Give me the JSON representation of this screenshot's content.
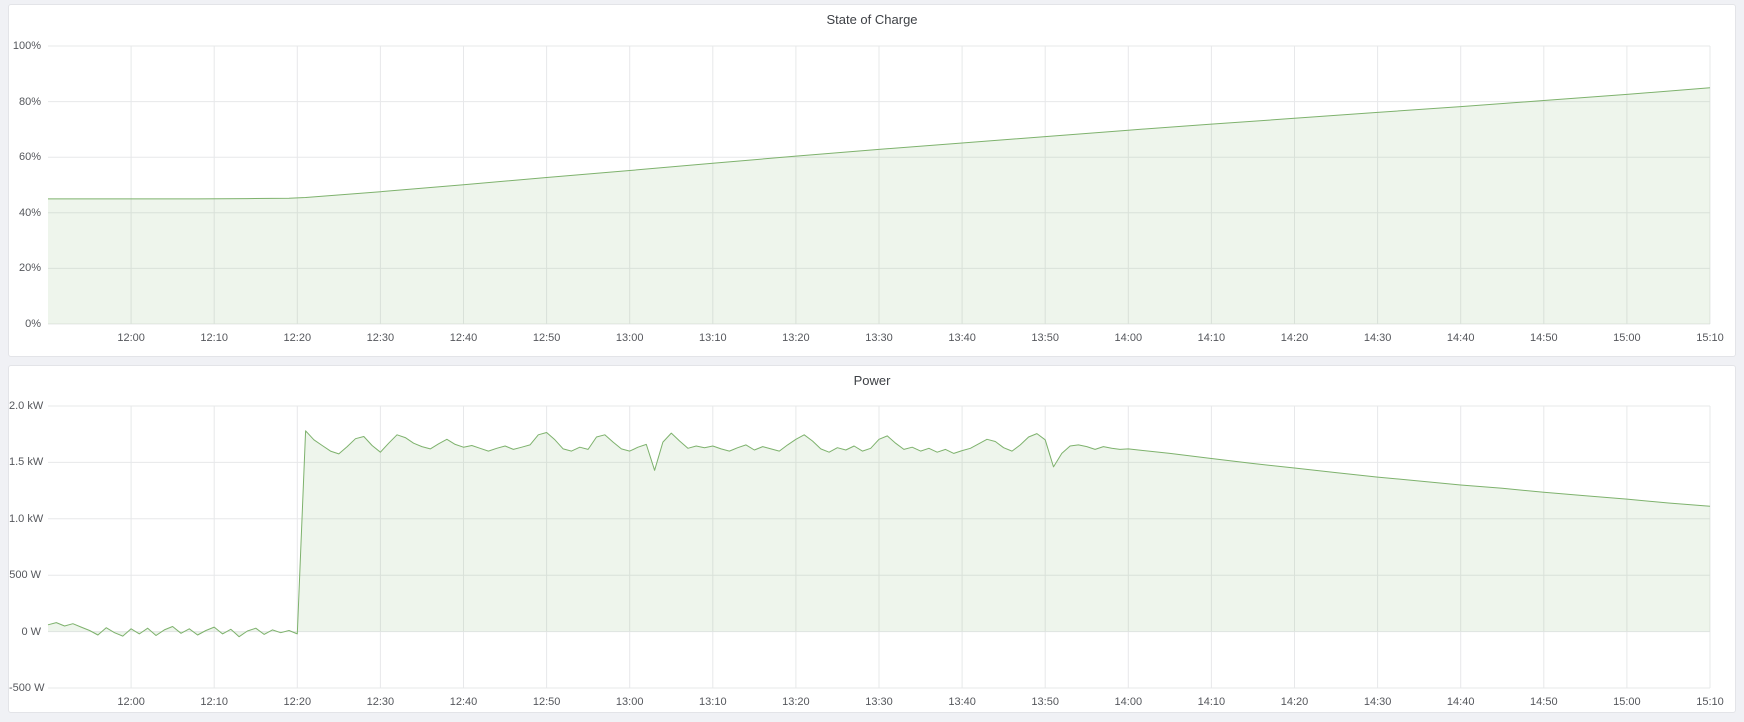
{
  "colors": {
    "series_green": "#7eb26d",
    "series_fill": "rgba(126,178,109,0.13)",
    "grid_line": "#e7e8ea",
    "axis_text": "#55575c",
    "panel_title_text": "#3e4146",
    "panel_background": "#ffffff",
    "page_background": "#f0f1f5"
  },
  "chart_data": [
    {
      "type": "area",
      "title": "State of Charge",
      "xlabel": "",
      "ylabel": "",
      "legend": "off",
      "grid": "on",
      "x_range": [
        0,
        200
      ],
      "y_range": [
        0,
        100
      ],
      "x_unit": "minutes since 11:50",
      "y_unit": "percent",
      "x_ticks": [
        {
          "value": 10,
          "label": "12:00"
        },
        {
          "value": 20,
          "label": "12:10"
        },
        {
          "value": 30,
          "label": "12:20"
        },
        {
          "value": 40,
          "label": "12:30"
        },
        {
          "value": 50,
          "label": "12:40"
        },
        {
          "value": 60,
          "label": "12:50"
        },
        {
          "value": 70,
          "label": "13:00"
        },
        {
          "value": 80,
          "label": "13:10"
        },
        {
          "value": 90,
          "label": "13:20"
        },
        {
          "value": 100,
          "label": "13:30"
        },
        {
          "value": 110,
          "label": "13:40"
        },
        {
          "value": 120,
          "label": "13:50"
        },
        {
          "value": 130,
          "label": "14:00"
        },
        {
          "value": 140,
          "label": "14:10"
        },
        {
          "value": 150,
          "label": "14:20"
        },
        {
          "value": 160,
          "label": "14:30"
        },
        {
          "value": 170,
          "label": "14:40"
        },
        {
          "value": 180,
          "label": "14:50"
        },
        {
          "value": 190,
          "label": "15:00"
        },
        {
          "value": 200,
          "label": "15:10"
        }
      ],
      "y_ticks": [
        {
          "value": 0,
          "label": "0%"
        },
        {
          "value": 20,
          "label": "20%"
        },
        {
          "value": 40,
          "label": "40%"
        },
        {
          "value": 60,
          "label": "60%"
        },
        {
          "value": 80,
          "label": "80%"
        },
        {
          "value": 100,
          "label": "100%"
        }
      ],
      "points": [
        [
          0,
          45
        ],
        [
          6,
          45
        ],
        [
          12,
          45
        ],
        [
          18,
          45
        ],
        [
          24,
          45.1
        ],
        [
          29,
          45.2
        ],
        [
          31,
          45.5
        ],
        [
          40,
          47.6
        ],
        [
          50,
          50.1
        ],
        [
          60,
          52.7
        ],
        [
          70,
          55.2
        ],
        [
          80,
          57.8
        ],
        [
          90,
          60.4
        ],
        [
          100,
          62.8
        ],
        [
          110,
          65.1
        ],
        [
          120,
          67.4
        ],
        [
          130,
          69.7
        ],
        [
          140,
          71.9
        ],
        [
          150,
          74
        ],
        [
          160,
          76.1
        ],
        [
          170,
          78.2
        ],
        [
          180,
          80.4
        ],
        [
          190,
          82.6
        ],
        [
          200,
          85
        ]
      ]
    },
    {
      "type": "area",
      "title": "Power",
      "xlabel": "",
      "ylabel": "",
      "legend": "off",
      "grid": "on",
      "x_range": [
        0,
        200
      ],
      "y_range": [
        -500,
        2000
      ],
      "x_unit": "minutes since 11:50",
      "y_unit": "watts",
      "x_ticks": [
        {
          "value": 10,
          "label": "12:00"
        },
        {
          "value": 20,
          "label": "12:10"
        },
        {
          "value": 30,
          "label": "12:20"
        },
        {
          "value": 40,
          "label": "12:30"
        },
        {
          "value": 50,
          "label": "12:40"
        },
        {
          "value": 60,
          "label": "12:50"
        },
        {
          "value": 70,
          "label": "13:00"
        },
        {
          "value": 80,
          "label": "13:10"
        },
        {
          "value": 90,
          "label": "13:20"
        },
        {
          "value": 100,
          "label": "13:30"
        },
        {
          "value": 110,
          "label": "13:40"
        },
        {
          "value": 120,
          "label": "13:50"
        },
        {
          "value": 130,
          "label": "14:00"
        },
        {
          "value": 140,
          "label": "14:10"
        },
        {
          "value": 150,
          "label": "14:20"
        },
        {
          "value": 160,
          "label": "14:30"
        },
        {
          "value": 170,
          "label": "14:40"
        },
        {
          "value": 180,
          "label": "14:50"
        },
        {
          "value": 190,
          "label": "15:00"
        },
        {
          "value": 200,
          "label": "15:10"
        }
      ],
      "y_ticks": [
        {
          "value": -500,
          "label": "-500 W"
        },
        {
          "value": 0,
          "label": "0 W"
        },
        {
          "value": 500,
          "label": "500 W"
        },
        {
          "value": 1000,
          "label": "1.0 kW"
        },
        {
          "value": 1500,
          "label": "1.5 kW"
        },
        {
          "value": 2000,
          "label": "2.0 kW"
        }
      ],
      "points": [
        [
          0,
          60
        ],
        [
          1,
          80
        ],
        [
          2,
          50
        ],
        [
          3,
          70
        ],
        [
          4,
          40
        ],
        [
          5,
          10
        ],
        [
          6,
          -30
        ],
        [
          7,
          35
        ],
        [
          8,
          -10
        ],
        [
          9,
          -40
        ],
        [
          10,
          25
        ],
        [
          11,
          -20
        ],
        [
          12,
          30
        ],
        [
          13,
          -35
        ],
        [
          14,
          15
        ],
        [
          15,
          45
        ],
        [
          16,
          -15
        ],
        [
          17,
          25
        ],
        [
          18,
          -30
        ],
        [
          19,
          10
        ],
        [
          20,
          40
        ],
        [
          21,
          -20
        ],
        [
          22,
          20
        ],
        [
          23,
          -45
        ],
        [
          24,
          5
        ],
        [
          25,
          30
        ],
        [
          26,
          -25
        ],
        [
          27,
          15
        ],
        [
          28,
          -10
        ],
        [
          29,
          10
        ],
        [
          30,
          -20
        ],
        [
          31,
          1780
        ],
        [
          32,
          1700
        ],
        [
          33,
          1650
        ],
        [
          34,
          1600
        ],
        [
          35,
          1575
        ],
        [
          36,
          1640
        ],
        [
          37,
          1710
        ],
        [
          38,
          1730
        ],
        [
          39,
          1650
        ],
        [
          40,
          1590
        ],
        [
          41,
          1670
        ],
        [
          42,
          1745
        ],
        [
          43,
          1720
        ],
        [
          44,
          1670
        ],
        [
          45,
          1640
        ],
        [
          46,
          1620
        ],
        [
          47,
          1665
        ],
        [
          48,
          1705
        ],
        [
          49,
          1660
        ],
        [
          50,
          1635
        ],
        [
          51,
          1650
        ],
        [
          52,
          1625
        ],
        [
          53,
          1600
        ],
        [
          54,
          1625
        ],
        [
          55,
          1645
        ],
        [
          56,
          1615
        ],
        [
          57,
          1635
        ],
        [
          58,
          1655
        ],
        [
          59,
          1745
        ],
        [
          60,
          1765
        ],
        [
          61,
          1700
        ],
        [
          62,
          1620
        ],
        [
          63,
          1600
        ],
        [
          64,
          1635
        ],
        [
          65,
          1615
        ],
        [
          66,
          1725
        ],
        [
          67,
          1745
        ],
        [
          68,
          1680
        ],
        [
          69,
          1620
        ],
        [
          70,
          1600
        ],
        [
          71,
          1635
        ],
        [
          72,
          1660
        ],
        [
          73,
          1430
        ],
        [
          74,
          1680
        ],
        [
          75,
          1760
        ],
        [
          76,
          1690
        ],
        [
          77,
          1625
        ],
        [
          78,
          1645
        ],
        [
          79,
          1630
        ],
        [
          80,
          1645
        ],
        [
          81,
          1620
        ],
        [
          82,
          1600
        ],
        [
          83,
          1630
        ],
        [
          84,
          1655
        ],
        [
          85,
          1610
        ],
        [
          86,
          1640
        ],
        [
          87,
          1620
        ],
        [
          88,
          1600
        ],
        [
          89,
          1655
        ],
        [
          90,
          1705
        ],
        [
          91,
          1745
        ],
        [
          92,
          1690
        ],
        [
          93,
          1620
        ],
        [
          94,
          1590
        ],
        [
          95,
          1630
        ],
        [
          96,
          1610
        ],
        [
          97,
          1645
        ],
        [
          98,
          1600
        ],
        [
          99,
          1625
        ],
        [
          100,
          1705
        ],
        [
          101,
          1735
        ],
        [
          102,
          1670
        ],
        [
          103,
          1615
        ],
        [
          104,
          1635
        ],
        [
          105,
          1600
        ],
        [
          106,
          1625
        ],
        [
          107,
          1590
        ],
        [
          108,
          1615
        ],
        [
          109,
          1580
        ],
        [
          110,
          1605
        ],
        [
          111,
          1625
        ],
        [
          112,
          1665
        ],
        [
          113,
          1705
        ],
        [
          114,
          1685
        ],
        [
          115,
          1630
        ],
        [
          116,
          1600
        ],
        [
          117,
          1655
        ],
        [
          118,
          1725
        ],
        [
          119,
          1755
        ],
        [
          120,
          1700
        ],
        [
          121,
          1460
        ],
        [
          122,
          1580
        ],
        [
          123,
          1645
        ],
        [
          124,
          1655
        ],
        [
          125,
          1640
        ],
        [
          126,
          1615
        ],
        [
          127,
          1640
        ],
        [
          128,
          1625
        ],
        [
          129,
          1615
        ],
        [
          130,
          1620
        ],
        [
          135,
          1580
        ],
        [
          140,
          1535
        ],
        [
          145,
          1490
        ],
        [
          150,
          1450
        ],
        [
          155,
          1410
        ],
        [
          160,
          1370
        ],
        [
          165,
          1335
        ],
        [
          170,
          1300
        ],
        [
          175,
          1270
        ],
        [
          180,
          1235
        ],
        [
          185,
          1205
        ],
        [
          190,
          1175
        ],
        [
          195,
          1140
        ],
        [
          200,
          1112
        ]
      ]
    }
  ]
}
